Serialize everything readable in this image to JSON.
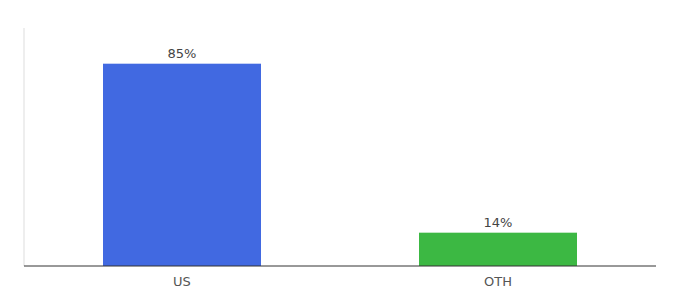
{
  "chart_data": {
    "type": "bar",
    "categories": [
      "US",
      "OTH"
    ],
    "values": [
      85,
      14
    ],
    "value_labels": [
      "85%",
      "14%"
    ],
    "colors": [
      "#4169E1",
      "#3CB843"
    ],
    "ylim": [
      0,
      100
    ],
    "data_labels": true,
    "tick_labels": "x"
  }
}
